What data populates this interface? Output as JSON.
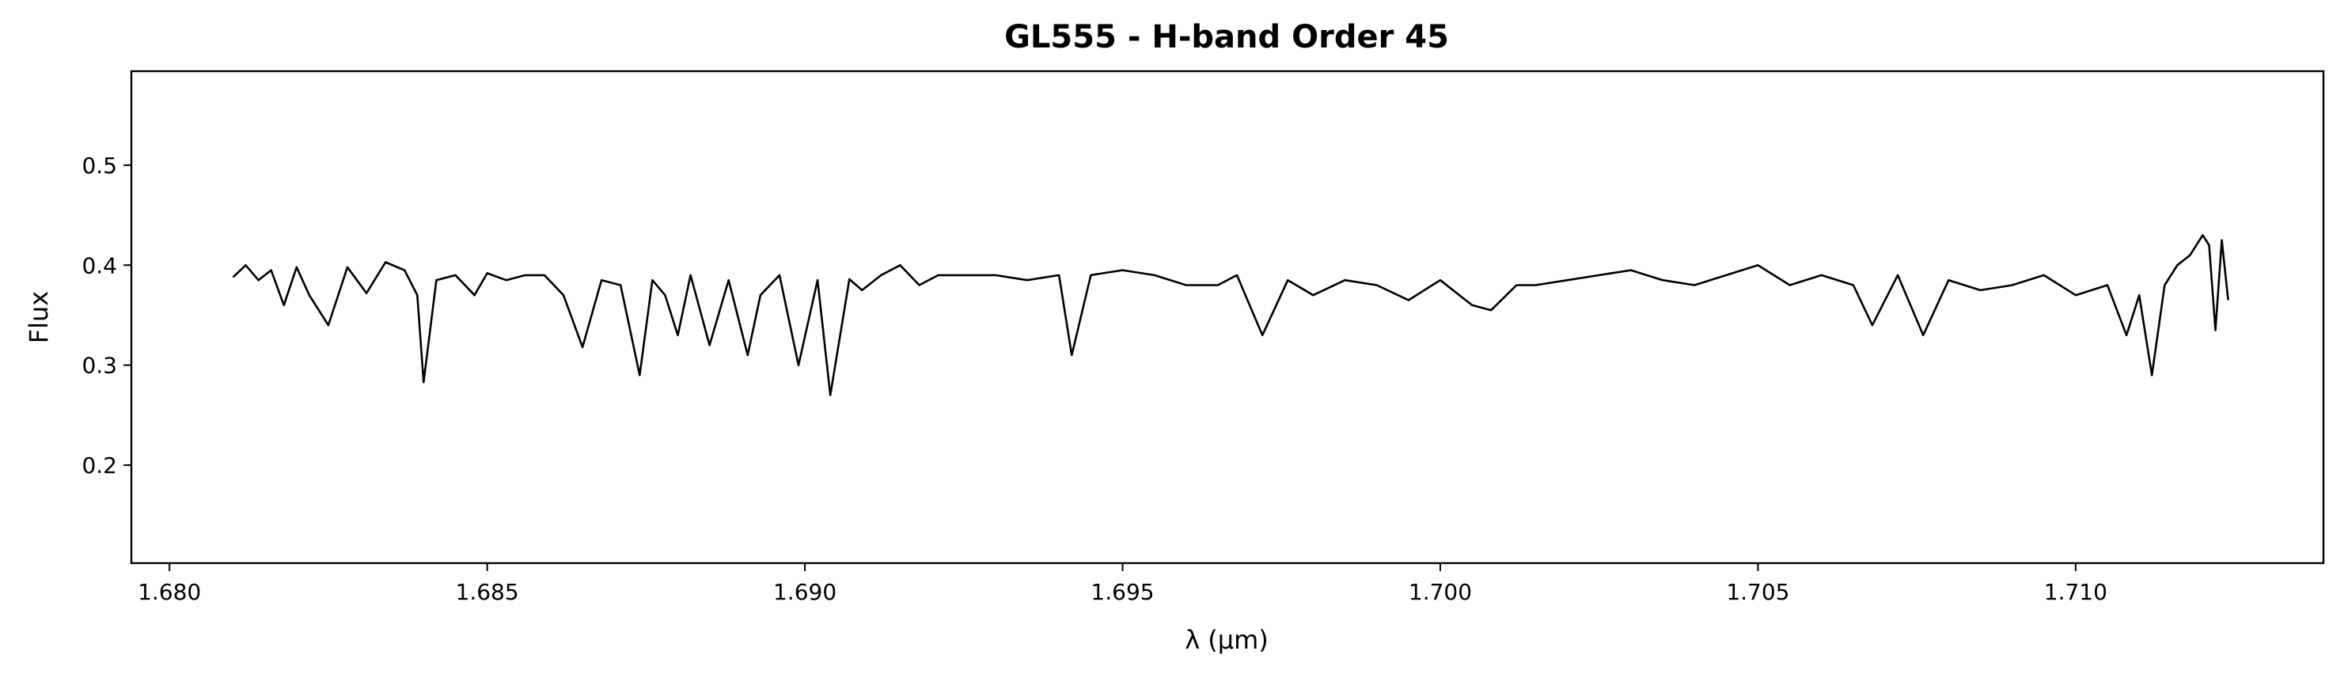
{
  "chart_data": {
    "type": "line",
    "title": "GL555 - H-band Order 45",
    "xlabel": "λ (μm)",
    "ylabel": "Flux",
    "xlim": [
      1.6794,
      1.7139
    ],
    "ylim": [
      0.102,
      0.594
    ],
    "x_ticks": [
      1.68,
      1.685,
      1.69,
      1.695,
      1.7,
      1.705,
      1.71
    ],
    "x_tick_labels": [
      "1.680",
      "1.685",
      "1.690",
      "1.695",
      "1.700",
      "1.705",
      "1.710"
    ],
    "y_ticks": [
      0.2,
      0.3,
      0.4,
      0.5
    ],
    "y_tick_labels": [
      "0.2",
      "0.3",
      "0.4",
      "0.5"
    ],
    "grid": false,
    "line_color": "#000000",
    "series": [
      {
        "x": [
          1.681,
          1.6812,
          1.6814,
          1.6816,
          1.6818,
          1.682,
          1.6822,
          1.6825,
          1.6828,
          1.6831,
          1.6834,
          1.6837,
          1.6839,
          1.684,
          1.6842,
          1.6845,
          1.6848,
          1.685,
          1.6853,
          1.6856,
          1.6859,
          1.6862,
          1.6865,
          1.6868,
          1.6871,
          1.6874,
          1.6876,
          1.6878,
          1.688,
          1.6882,
          1.6885,
          1.6888,
          1.6891,
          1.6893,
          1.6896,
          1.6899,
          1.6902,
          1.6904,
          1.6907,
          1.6909,
          1.6912,
          1.6915,
          1.6918,
          1.6921,
          1.6925,
          1.693,
          1.6935,
          1.694,
          1.6942,
          1.6945,
          1.695,
          1.6955,
          1.696,
          1.6965,
          1.6968,
          1.6972,
          1.6976,
          1.698,
          1.6985,
          1.699,
          1.6995,
          1.7,
          1.7005,
          1.7008,
          1.7012,
          1.7015,
          1.702,
          1.7025,
          1.703,
          1.7035,
          1.704,
          1.7045,
          1.705,
          1.7055,
          1.706,
          1.7065,
          1.7068,
          1.7072,
          1.7076,
          1.708,
          1.7085,
          1.709,
          1.7095,
          1.71,
          1.7105,
          1.7108,
          1.711,
          1.7112,
          1.7114,
          1.7116,
          1.7118,
          1.712,
          1.7121,
          1.7122,
          1.7123,
          1.7124
        ],
        "y": [
          0.388,
          0.4,
          0.385,
          0.395,
          0.36,
          0.398,
          0.37,
          0.34,
          0.398,
          0.372,
          0.403,
          0.395,
          0.37,
          0.283,
          0.385,
          0.39,
          0.37,
          0.392,
          0.385,
          0.39,
          0.39,
          0.37,
          0.318,
          0.385,
          0.38,
          0.29,
          0.385,
          0.37,
          0.33,
          0.39,
          0.32,
          0.385,
          0.31,
          0.37,
          0.39,
          0.3,
          0.385,
          0.27,
          0.386,
          0.375,
          0.39,
          0.4,
          0.38,
          0.39,
          0.39,
          0.39,
          0.385,
          0.39,
          0.31,
          0.39,
          0.395,
          0.39,
          0.38,
          0.38,
          0.39,
          0.33,
          0.385,
          0.37,
          0.385,
          0.38,
          0.365,
          0.385,
          0.36,
          0.355,
          0.38,
          0.38,
          0.385,
          0.39,
          0.395,
          0.385,
          0.38,
          0.39,
          0.4,
          0.38,
          0.39,
          0.38,
          0.34,
          0.39,
          0.33,
          0.385,
          0.375,
          0.38,
          0.39,
          0.37,
          0.38,
          0.33,
          0.37,
          0.29,
          0.38,
          0.4,
          0.41,
          0.43,
          0.42,
          0.335,
          0.425,
          0.365
        ]
      }
    ]
  }
}
